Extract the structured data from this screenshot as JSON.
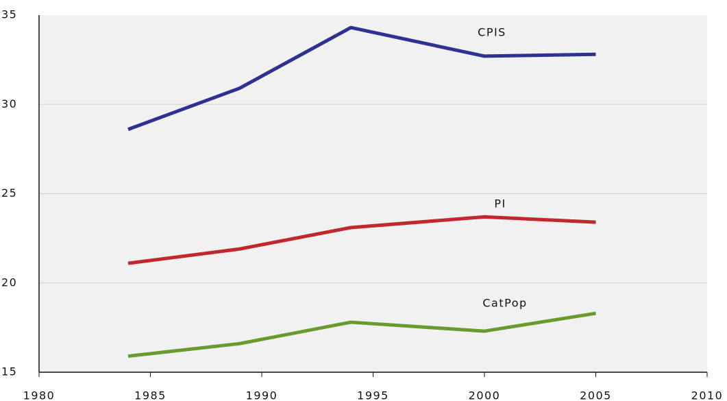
{
  "chart_data": {
    "type": "line",
    "x": [
      1984,
      1989,
      1994,
      2000,
      2005
    ],
    "series": [
      {
        "name": "CPIS",
        "color": "#2e3192",
        "values": [
          28.6,
          30.9,
          34.3,
          32.7,
          32.8
        ]
      },
      {
        "name": "PI",
        "color": "#c1272d",
        "values": [
          21.1,
          21.9,
          23.1,
          23.7,
          23.4
        ]
      },
      {
        "name": "CatPop",
        "color": "#6a9a2e",
        "values": [
          15.9,
          16.6,
          17.8,
          17.3,
          18.3
        ]
      }
    ],
    "xlim": [
      1980,
      2010
    ],
    "xticks": [
      1980,
      1985,
      1990,
      1995,
      2000,
      2005,
      2010
    ],
    "ylim": [
      15,
      35
    ],
    "yticks": [
      15,
      20,
      25,
      30,
      35
    ],
    "grid": true
  }
}
